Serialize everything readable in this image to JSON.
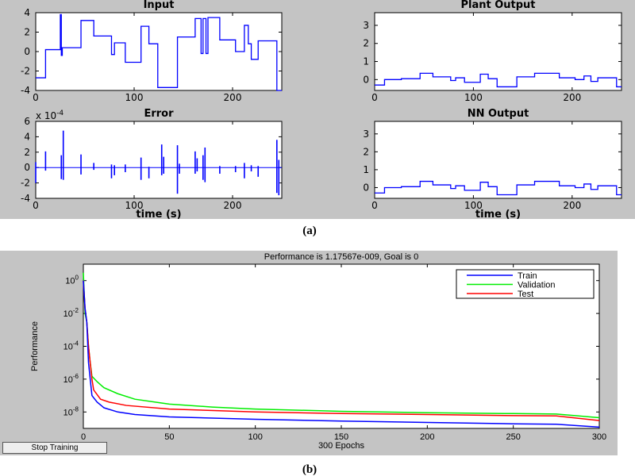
{
  "captions": {
    "a": "(a)",
    "b": "(b)"
  },
  "button": {
    "stop_training": "Stop Training"
  },
  "colors": {
    "signal": "#0000ff",
    "train": "#0000ff",
    "validation": "#00ee00",
    "test": "#ff0000",
    "panel": "#c4c4c4"
  },
  "chart_data": [
    {
      "id": "input",
      "type": "line",
      "title": "Input",
      "xlabel": "",
      "ylabel": "",
      "xlim": [
        0,
        250
      ],
      "ylim": [
        -4,
        4
      ],
      "xticks": [
        0,
        100,
        200
      ],
      "yticks": [
        -4,
        -2,
        0,
        2,
        4
      ],
      "steps": [
        [
          0,
          10,
          -2.7
        ],
        [
          10,
          25,
          0.2
        ],
        [
          25,
          26,
          3.8
        ],
        [
          26,
          27,
          -0.4
        ],
        [
          27,
          46,
          0.4
        ],
        [
          46,
          59,
          3.2
        ],
        [
          59,
          77,
          1.6
        ],
        [
          77,
          80,
          -0.3
        ],
        [
          80,
          82,
          0.9
        ],
        [
          82,
          91,
          0.9
        ],
        [
          91,
          107,
          -1.1
        ],
        [
          107,
          115,
          2.6
        ],
        [
          115,
          124,
          0.8
        ],
        [
          124,
          144,
          -3.7
        ],
        [
          144,
          162,
          1.5
        ],
        [
          162,
          168,
          3.4
        ],
        [
          168,
          170,
          -0.2
        ],
        [
          170,
          173,
          3.4
        ],
        [
          173,
          175,
          -0.2
        ],
        [
          175,
          187,
          3.5
        ],
        [
          187,
          203,
          1.2
        ],
        [
          203,
          212,
          0
        ],
        [
          212,
          216,
          2.7
        ],
        [
          216,
          219,
          0.8
        ],
        [
          219,
          226,
          -0.8
        ],
        [
          226,
          245,
          1.1
        ],
        [
          245,
          250,
          -4
        ]
      ]
    },
    {
      "id": "plant",
      "type": "line",
      "title": "Plant Output",
      "xlabel": "",
      "ylabel": "",
      "xlim": [
        0,
        250
      ],
      "ylim": [
        -0.6,
        3.7
      ],
      "xticks": [
        0,
        100,
        200
      ],
      "yticks": [
        0,
        1,
        2,
        3
      ],
      "steps": [
        [
          0,
          10,
          -0.3
        ],
        [
          10,
          27,
          0.0
        ],
        [
          27,
          46,
          0.05
        ],
        [
          46,
          59,
          0.35
        ],
        [
          59,
          77,
          0.15
        ],
        [
          77,
          82,
          -0.05
        ],
        [
          82,
          91,
          0.1
        ],
        [
          91,
          107,
          -0.15
        ],
        [
          107,
          115,
          0.3
        ],
        [
          115,
          124,
          0.05
        ],
        [
          124,
          144,
          -0.4
        ],
        [
          144,
          162,
          0.15
        ],
        [
          162,
          187,
          0.35
        ],
        [
          187,
          203,
          0.1
        ],
        [
          203,
          212,
          0
        ],
        [
          212,
          219,
          0.2
        ],
        [
          219,
          226,
          -0.1
        ],
        [
          226,
          245,
          0.1
        ],
        [
          245,
          250,
          -0.4
        ]
      ]
    },
    {
      "id": "error",
      "type": "line",
      "title": "Error",
      "xlabel": "time (s)",
      "ylabel": "",
      "exponent_label": "x 10",
      "exponent": "-4",
      "xlim": [
        0,
        250
      ],
      "ylim": [
        -4,
        6
      ],
      "xticks": [
        0,
        100,
        200
      ],
      "yticks": [
        -4,
        -2,
        0,
        2,
        4,
        6
      ],
      "spikes": [
        [
          0,
          0.7,
          -2
        ],
        [
          10,
          2.1,
          -0.4
        ],
        [
          26,
          1.6,
          -1.5
        ],
        [
          28,
          4.8,
          -1.6
        ],
        [
          46,
          1.7,
          -0.9
        ],
        [
          59,
          0.6,
          -0.3
        ],
        [
          77,
          0.4,
          -1.4
        ],
        [
          80,
          0.3,
          -1
        ],
        [
          91,
          0.4,
          -0.6
        ],
        [
          107,
          1.3,
          -1.6
        ],
        [
          115,
          0.1,
          -1.4
        ],
        [
          128,
          3,
          -1
        ],
        [
          130,
          1.4,
          -0.8
        ],
        [
          144,
          2.9,
          -3.4
        ],
        [
          146,
          0.5,
          -0.8
        ],
        [
          162,
          2.1,
          -0.8
        ],
        [
          164,
          1.2,
          -0.5
        ],
        [
          170,
          1.6,
          -1.6
        ],
        [
          172,
          2.6,
          -1.9
        ],
        [
          187,
          0.2,
          -0.8
        ],
        [
          203,
          0.2,
          -0.6
        ],
        [
          212,
          0.6,
          -1.4
        ],
        [
          219,
          0.3,
          -0.5
        ],
        [
          226,
          0.2,
          -1.2
        ],
        [
          245,
          3.6,
          -3.3
        ],
        [
          247,
          1,
          -3.6
        ]
      ]
    },
    {
      "id": "nn",
      "type": "line",
      "title": "NN Output",
      "xlabel": "time (s)",
      "ylabel": "",
      "xlim": [
        0,
        250
      ],
      "ylim": [
        -0.6,
        3.7
      ],
      "xticks": [
        0,
        100,
        200
      ],
      "yticks": [
        0,
        1,
        2,
        3
      ],
      "steps": [
        [
          0,
          10,
          -0.3
        ],
        [
          10,
          27,
          0.0
        ],
        [
          27,
          46,
          0.05
        ],
        [
          46,
          59,
          0.35
        ],
        [
          59,
          77,
          0.15
        ],
        [
          77,
          82,
          -0.05
        ],
        [
          82,
          91,
          0.1
        ],
        [
          91,
          107,
          -0.15
        ],
        [
          107,
          115,
          0.3
        ],
        [
          115,
          124,
          0.05
        ],
        [
          124,
          144,
          -0.4
        ],
        [
          144,
          162,
          0.15
        ],
        [
          162,
          187,
          0.35
        ],
        [
          187,
          203,
          0.1
        ],
        [
          203,
          212,
          0
        ],
        [
          212,
          219,
          0.2
        ],
        [
          219,
          226,
          -0.1
        ],
        [
          226,
          245,
          0.1
        ],
        [
          245,
          250,
          -0.4
        ]
      ]
    },
    {
      "id": "performance",
      "type": "line",
      "title": "Performance is 1.17567e-009, Goal is 0",
      "xlabel": "300 Epochs",
      "ylabel": "Performance",
      "yscale": "log",
      "xlim": [
        0,
        300
      ],
      "ylim_exp": [
        -9,
        1
      ],
      "xticks": [
        0,
        50,
        100,
        150,
        200,
        250,
        300
      ],
      "ytick_exps": [
        0,
        -2,
        -4,
        -6,
        -8
      ],
      "legend": {
        "position": "top-right",
        "entries": [
          "Train",
          "Validation",
          "Test"
        ]
      },
      "series": [
        {
          "name": "Train",
          "x": [
            0,
            1,
            2,
            3,
            4,
            5,
            8,
            12,
            20,
            30,
            50,
            100,
            150,
            200,
            250,
            275,
            300
          ],
          "y": [
            1,
            0.02,
            0.003,
            1e-05,
            1e-06,
            1e-07,
            4e-08,
            1.8e-08,
            1e-08,
            7e-09,
            5e-09,
            3.6e-09,
            2.8e-09,
            2.3e-09,
            1.9e-09,
            1.8e-09,
            1.2e-09
          ]
        },
        {
          "name": "Validation",
          "x": [
            0,
            1,
            2,
            3,
            4,
            5,
            8,
            12,
            20,
            30,
            50,
            75,
            100,
            150,
            200,
            250,
            275,
            300
          ],
          "y": [
            3,
            0.01,
            0.003,
            0.0001,
            1e-05,
            1.5e-06,
            7e-07,
            3e-07,
            1.3e-07,
            6e-08,
            3e-08,
            2e-08,
            1.5e-08,
            1.1e-08,
            9e-09,
            8e-09,
            7.5e-09,
            4.5e-09
          ]
        },
        {
          "name": "Test",
          "x": [
            0,
            1,
            2,
            3,
            4,
            5,
            6,
            10,
            15,
            25,
            50,
            100,
            150,
            200,
            250,
            275,
            300
          ],
          "y": [
            1,
            0.02,
            0.003,
            0.0001,
            1e-05,
            1e-06,
            2.2e-07,
            6e-08,
            4e-08,
            2.5e-08,
            1.5e-08,
            1e-08,
            8e-09,
            7e-09,
            6e-09,
            5.8e-09,
            3e-09
          ]
        }
      ]
    }
  ]
}
